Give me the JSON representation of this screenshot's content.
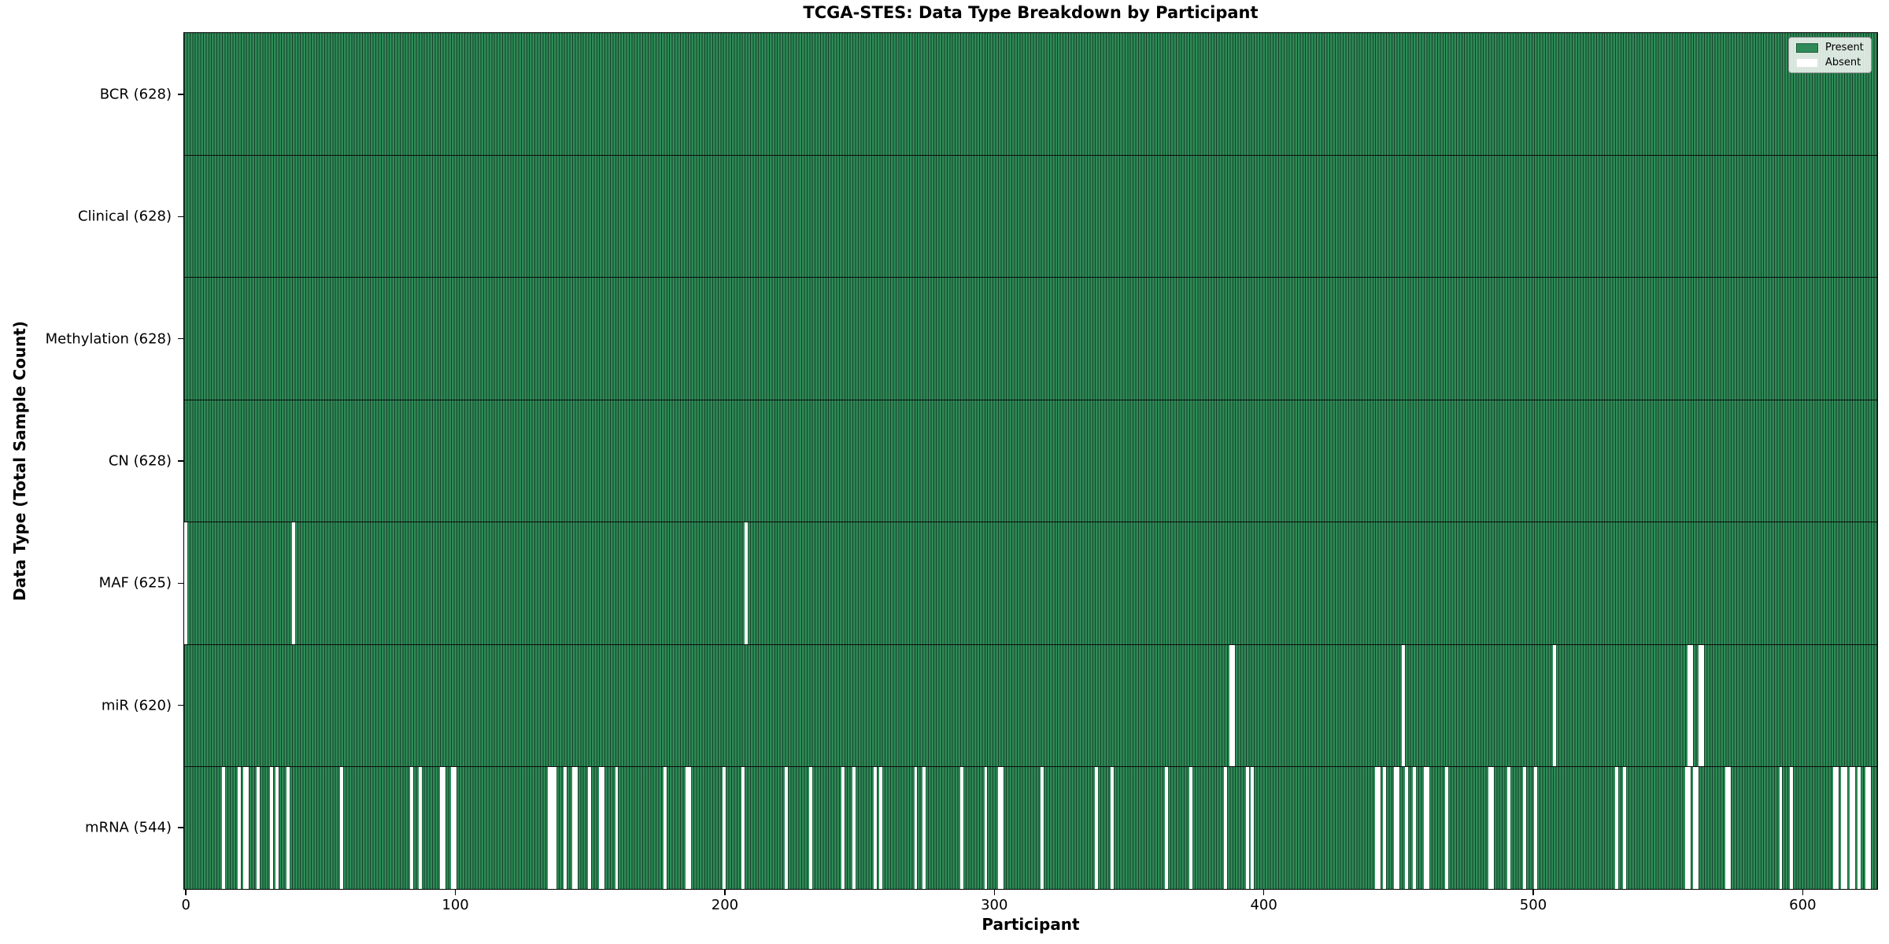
{
  "figure": {
    "title": "TCGA-STES: Data Type Breakdown by Participant",
    "xlabel": "Participant",
    "ylabel": "Data Type (Total Sample Count)"
  },
  "legend": {
    "items": [
      {
        "label": "Present",
        "color": "#2e8b57"
      },
      {
        "label": "Absent",
        "color": "#ffffff"
      }
    ]
  },
  "colors": {
    "present_fill": "#2e8b57",
    "bar_edge": "#173f2a",
    "absent_fill": "#ffffff",
    "plot_border": "#000000",
    "legend_background": "#f8faf8"
  },
  "chart_data": {
    "type": "heatmap",
    "title": "TCGA-STES: Data Type Breakdown by Participant",
    "xlabel": "Participant",
    "ylabel": "Data Type (Total Sample Count)",
    "legend": [
      "Present",
      "Absent"
    ],
    "legend_position": "upper right",
    "grid": false,
    "n_participants": 628,
    "x_range": [
      0,
      628
    ],
    "x_ticks": [
      0,
      100,
      200,
      300,
      400,
      500,
      600
    ],
    "rows": [
      {
        "name": "BCR",
        "label": "BCR (628)",
        "present_count": 628,
        "absent_participants": []
      },
      {
        "name": "Clinical",
        "label": "Clinical (628)",
        "present_count": 628,
        "absent_participants": []
      },
      {
        "name": "Methylation",
        "label": "Methylation (628)",
        "present_count": 628,
        "absent_participants": []
      },
      {
        "name": "CN",
        "label": "CN (628)",
        "present_count": 628,
        "absent_participants": []
      },
      {
        "name": "MAF",
        "label": "MAF (625)",
        "present_count": 625,
        "absent_participants": [
          0,
          40,
          208
        ]
      },
      {
        "name": "miR",
        "label": "miR (620)",
        "present_count": 620,
        "absent_participants": [
          388,
          389,
          452,
          508,
          558,
          559,
          562,
          563
        ]
      },
      {
        "name": "mRNA",
        "label": "mRNA (544)",
        "present_count": 544,
        "absent_participants": [
          14,
          20,
          22,
          23,
          27,
          32,
          34,
          38,
          58,
          84,
          87,
          95,
          96,
          99,
          100,
          135,
          136,
          137,
          141,
          144,
          145,
          150,
          154,
          155,
          160,
          178,
          186,
          187,
          200,
          207,
          223,
          232,
          244,
          248,
          256,
          258,
          271,
          274,
          288,
          297,
          302,
          303,
          318,
          338,
          344,
          364,
          373,
          386,
          394,
          396,
          442,
          443,
          445,
          449,
          450,
          453,
          456,
          460,
          461,
          468,
          484,
          485,
          491,
          497,
          501,
          531,
          534,
          557,
          558,
          560,
          561,
          572,
          573,
          592,
          596,
          612,
          613,
          615,
          616,
          618,
          619,
          621,
          624,
          625
        ]
      }
    ]
  }
}
